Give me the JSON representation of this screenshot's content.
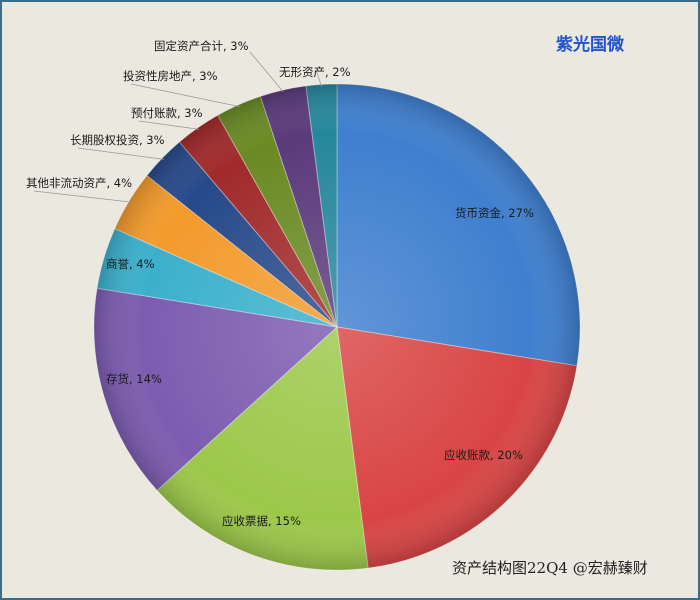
{
  "chart_data": {
    "type": "pie",
    "title": "紫光国微",
    "source_note": "资产结构图22Q4 @宏赫臻财",
    "slices": [
      {
        "label": "货币资金",
        "value": 27,
        "color": "#3f7fcf"
      },
      {
        "label": "应收账款",
        "value": 20,
        "color": "#d94545"
      },
      {
        "label": "应收票据",
        "value": 15,
        "color": "#9cc84a"
      },
      {
        "label": "存货",
        "value": 14,
        "color": "#7c5cb0"
      },
      {
        "label": "商誉",
        "value": 4,
        "color": "#3bb0cc"
      },
      {
        "label": "其他非流动资产",
        "value": 4,
        "color": "#f39a2c"
      },
      {
        "label": "长期股权投资",
        "value": 3,
        "color": "#27498a"
      },
      {
        "label": "预付账款",
        "value": 3,
        "color": "#a12a2a"
      },
      {
        "label": "投资性房地产",
        "value": 3,
        "color": "#6a8a24"
      },
      {
        "label": "固定资产合计",
        "value": 3,
        "color": "#5b3a7c"
      },
      {
        "label": "无形资产",
        "value": 2,
        "color": "#26879c"
      }
    ]
  }
}
